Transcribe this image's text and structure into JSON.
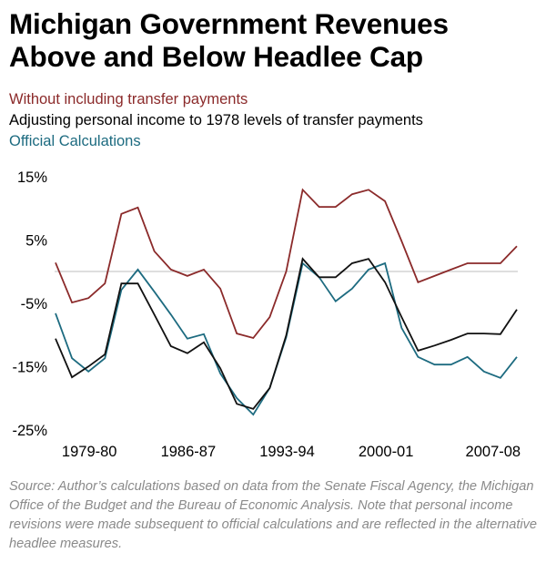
{
  "chart_data": {
    "type": "line",
    "title": "Michigan Government Revenues Above and Below Headlee Cap",
    "xlabel": "",
    "ylabel": "",
    "ylim": [
      -25,
      15
    ],
    "yticks": [
      15,
      5,
      -5,
      -15,
      -25
    ],
    "ytick_labels": [
      "15%",
      "5%",
      "-5%",
      "-15%",
      "-25%"
    ],
    "xtick_labels": [
      {
        "label": "1979-80",
        "index": 2
      },
      {
        "label": "1986-87",
        "index": 8
      },
      {
        "label": "1993-94",
        "index": 14
      },
      {
        "label": "2000-01",
        "index": 20
      },
      {
        "label": "2007-08",
        "index": 26.5
      }
    ],
    "reference_line": 0,
    "grid": false,
    "legend_placement": "top-left",
    "series": [
      {
        "name": "Without including transfer payments",
        "color": "#8b2a2a",
        "values": [
          1.4,
          -4.9,
          -4.2,
          -1.9,
          9.1,
          10.1,
          3.2,
          0.3,
          -0.7,
          0.3,
          -2.7,
          -9.8,
          -10.5,
          -7.2,
          0.0,
          12.9,
          10.2,
          10.2,
          12.2,
          12.9,
          11.1,
          4.8,
          -1.7,
          -0.7,
          0.3,
          1.3,
          1.3,
          1.3,
          4.0
        ]
      },
      {
        "name": "Adjusting personal income to 1978 levels of transfer payments",
        "color": "#111111",
        "values": [
          -10.6,
          -16.7,
          -15.0,
          -13.1,
          -1.9,
          -1.9,
          -6.8,
          -11.8,
          -12.9,
          -11.2,
          -15.3,
          -20.9,
          -21.7,
          -18.4,
          -10.1,
          2.0,
          -0.9,
          -0.9,
          1.3,
          2.0,
          -1.7,
          -7.2,
          -12.5,
          -11.7,
          -10.8,
          -9.8,
          -9.8,
          -9.9,
          -6.0
        ]
      },
      {
        "name": "Official Calculations",
        "color": "#1d6b80",
        "values": [
          -6.6,
          -13.7,
          -15.8,
          -13.7,
          -2.9,
          0.3,
          -3.2,
          -6.8,
          -10.6,
          -9.9,
          -16.1,
          -20.0,
          -22.6,
          -18.4,
          -10.4,
          1.3,
          -0.9,
          -4.7,
          -2.7,
          0.3,
          1.3,
          -8.9,
          -13.5,
          -14.7,
          -14.7,
          -13.5,
          -15.8,
          -16.8,
          -13.5
        ]
      }
    ],
    "source_note": "Source: Author’s calculations based on data from the Senate Fiscal Agency, the Michigan Office of the Budget and the Bureau of Economic Analysis. Note that personal income revisions were made subsequent to official calculations and are reflected in the alternative headlee measures."
  },
  "header": {
    "title_line1": "Michigan Government Revenues",
    "title_line2": "Above and Below Headlee Cap"
  },
  "legend": {
    "items": [
      {
        "label": "Without including transfer payments",
        "color": "#8b2a2a"
      },
      {
        "label": "Adjusting personal income to 1978 levels of transfer payments",
        "color": "#000000"
      },
      {
        "label": "Official Calculations",
        "color": "#1d6b80"
      }
    ]
  },
  "footer": {
    "source": "Source: Author’s calculations based on data from the Senate Fiscal Agency, the Michigan Office of the Budget and the Bureau of Economic Analysis. Note that personal income revisions were made subsequent to official calculations and are reflected in the alternative headlee measures."
  }
}
